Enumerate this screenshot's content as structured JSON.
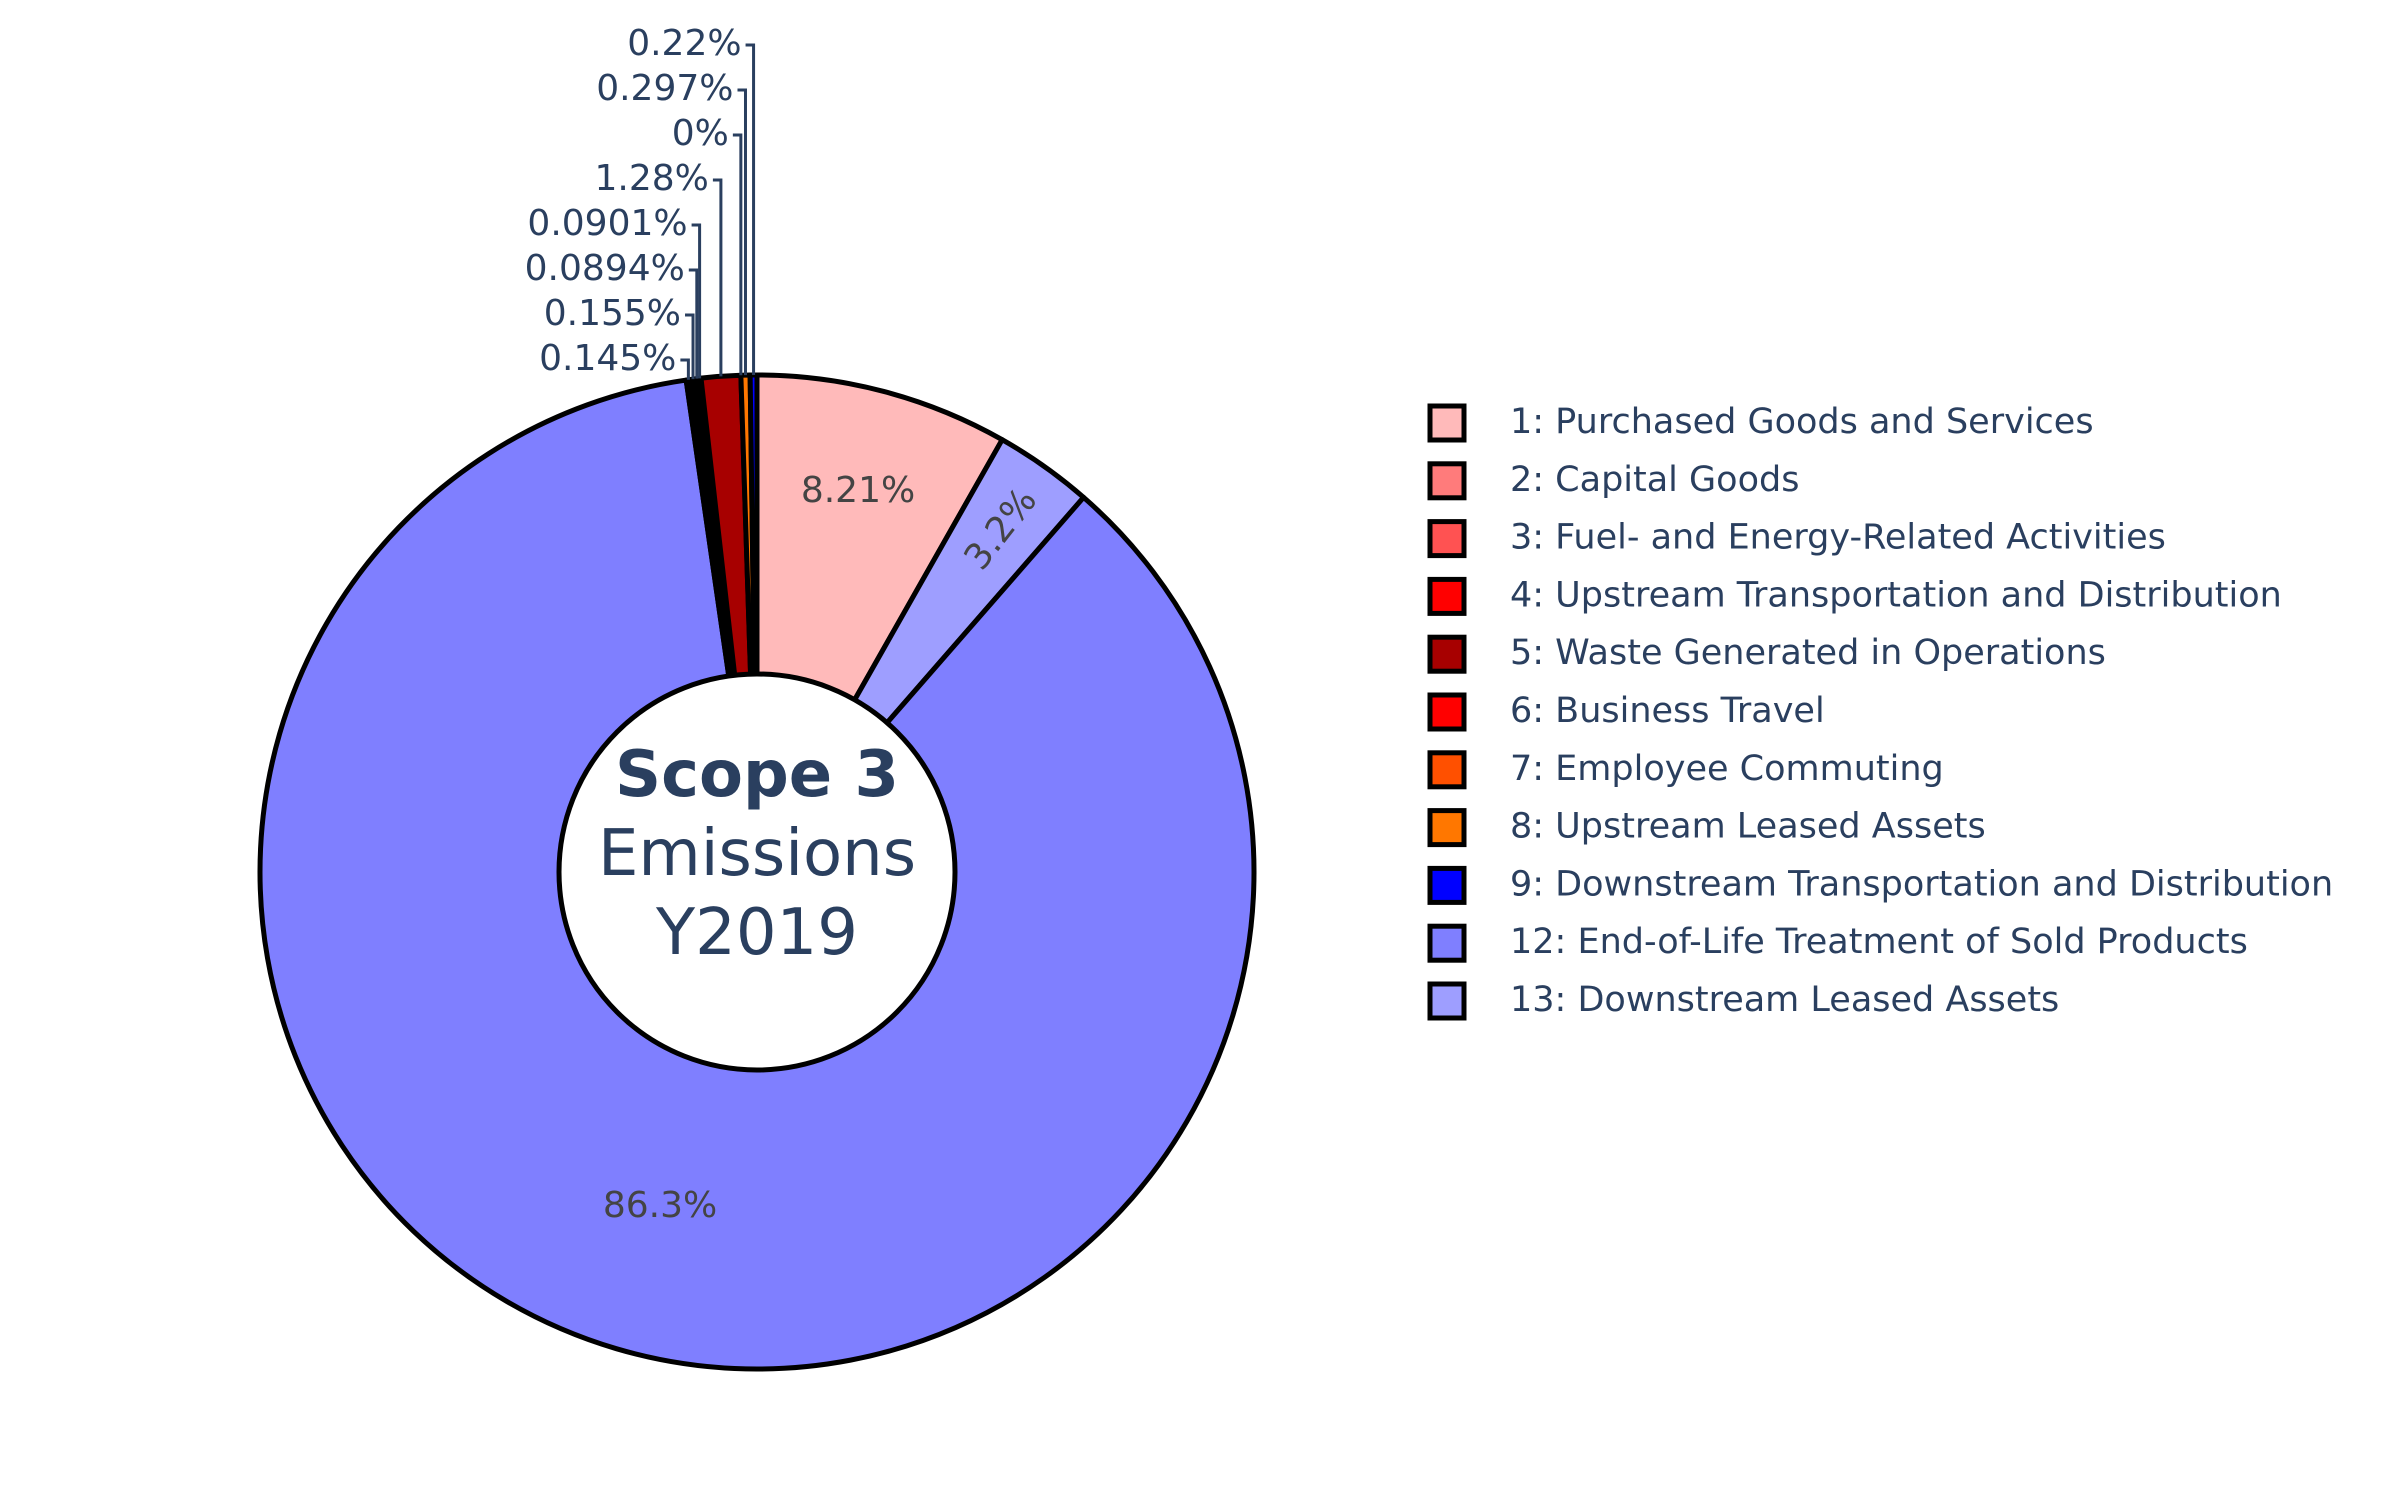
{
  "chart_data": {
    "type": "pie",
    "hole": true,
    "center_text": {
      "line1": "Scope 3",
      "line2": "Emissions",
      "line3": "Y2019"
    },
    "slices": [
      {
        "legend": "1: Purchased Goods and Services",
        "value": 8.21,
        "label": "8.21%",
        "color": "#FFBABA"
      },
      {
        "legend": "13: Downstream Leased Assets",
        "value": 3.2,
        "label": "3.2%",
        "color": "#9E9EFF"
      },
      {
        "legend": "12: End-of-Life Treatment of Sold Products",
        "value": 86.3,
        "label": "86.3%",
        "color": "#7F7FFF"
      },
      {
        "legend": "2: Capital Goods",
        "value": 0.145,
        "label": "0.145%",
        "color": "#FF7B7B"
      },
      {
        "legend": "3: Fuel- and Energy-Related Activities",
        "value": 0.155,
        "label": "0.155%",
        "color": "#FF5252"
      },
      {
        "legend": "4: Upstream Transportation and Distribution",
        "value": 0.0894,
        "label": "0.0894%",
        "color": "#FF0000"
      },
      {
        "legend": "5: Waste Generated in Operations",
        "value": 0.0901,
        "label": "0.0901%",
        "color": "#A70000"
      },
      {
        "legend": "6: Business Travel",
        "value": 1.28,
        "label": "1.28%",
        "color": "#A70000"
      },
      {
        "legend": "7: Employee Commuting",
        "value": 0,
        "label": "0%",
        "color": "#FF5000"
      },
      {
        "legend": "8: Upstream Leased Assets",
        "value": 0.297,
        "label": "0.297%",
        "color": "#FF7700"
      },
      {
        "legend": "9: Downstream Transportation and Distribution",
        "value": 0.22,
        "label": "0.22%",
        "color": "#0000FF"
      }
    ],
    "legend_entries": [
      {
        "label": "1: Purchased Goods and Services",
        "color": "#FFBABA"
      },
      {
        "label": "2: Capital Goods",
        "color": "#FF7B7B"
      },
      {
        "label": "3: Fuel- and Energy-Related Activities",
        "color": "#FF5252"
      },
      {
        "label": "4: Upstream Transportation and Distribution",
        "color": "#FF0000"
      },
      {
        "label": "5: Waste Generated in Operations",
        "color": "#A70000"
      },
      {
        "label": "6: Business Travel",
        "color": "#FF0000"
      },
      {
        "label": "7: Employee Commuting",
        "color": "#FF5000"
      },
      {
        "label": "8: Upstream Leased Assets",
        "color": "#FF7700"
      },
      {
        "label": "9: Downstream Transportation and Distribution",
        "color": "#0000FF"
      },
      {
        "label": "12: End-of-Life Treatment of Sold Products",
        "color": "#7F7FFF"
      },
      {
        "label": "13: Downstream Leased Assets",
        "color": "#9E9EFF"
      }
    ],
    "legend_position": "right"
  }
}
